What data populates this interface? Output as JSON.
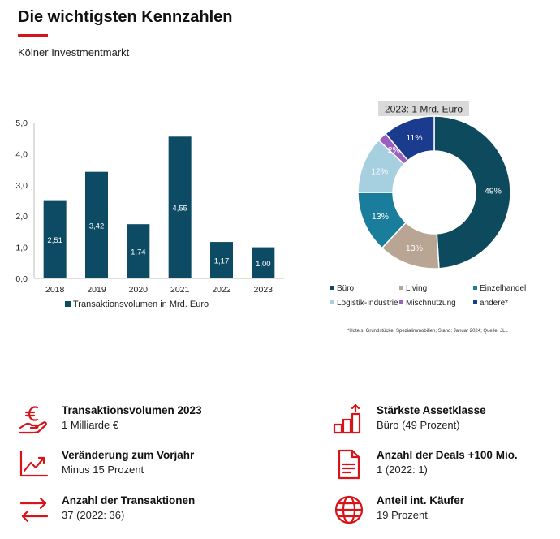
{
  "header": {
    "title": "Die wichtigsten Kennzahlen",
    "subtitle": "Kölner Investmentmarkt"
  },
  "colors": {
    "accent": "#d7141a",
    "bar": "#0d4a63"
  },
  "chart_data": [
    {
      "type": "bar",
      "categories": [
        "2018",
        "2019",
        "2020",
        "2021",
        "2022",
        "2023"
      ],
      "series": [
        {
          "name": "Transaktionsvolumen in Mrd. Euro",
          "values": [
            2.51,
            3.42,
            1.74,
            4.55,
            1.17,
            1.0
          ]
        }
      ],
      "value_labels": [
        "2,51",
        "3,42",
        "1,74",
        "4,55",
        "1,17",
        "1,00"
      ],
      "ylim": [
        0,
        5
      ],
      "yticks": [
        0,
        1,
        2,
        3,
        4,
        5
      ],
      "ytick_labels": [
        "0,0",
        "1,0",
        "2,0",
        "3,0",
        "4,0",
        "5,0"
      ],
      "grid": false,
      "legend_position": "bottom"
    },
    {
      "type": "pie",
      "title": "2023: 1 Mrd. Euro",
      "donut": true,
      "labels": [
        "Büro",
        "Living",
        "Einzelhandel",
        "Logistik-Industrie",
        "Mischnutzung",
        "andere*"
      ],
      "values": [
        49,
        13,
        13,
        12,
        2,
        11
      ],
      "value_labels": [
        "49%",
        "13%",
        "13%",
        "12%",
        "2%",
        "11%"
      ],
      "colors": [
        "#0d4a5e",
        "#b8a594",
        "#1a7d9c",
        "#a6d0df",
        "#9b5fc0",
        "#1b3b8f"
      ],
      "legend_position": "bottom",
      "footnote": "*Hotels, Grundstücke, Spezialimmobilien; Stand: Januar 2024; Quelle: JLL"
    }
  ],
  "kpis": {
    "volumen": {
      "label": "Transaktionsvolumen 2023",
      "value": "1 Milliarde €",
      "icon": "euro-hand-icon"
    },
    "veraenderung": {
      "label": "Veränderung zum Vorjahr",
      "value": "Minus 15 Prozent",
      "icon": "trend-chart-icon"
    },
    "transaktionen": {
      "label": "Anzahl der Transaktionen",
      "value": "37 (2022: 36)",
      "icon": "exchange-arrows-icon"
    },
    "assetklasse": {
      "label": "Stärkste Assetklasse",
      "value": "Büro (49 Prozent)",
      "icon": "growth-bars-icon"
    },
    "deals": {
      "label": "Anzahl der Deals +100 Mio.",
      "value": "1 (2022: 1)",
      "icon": "document-icon"
    },
    "kaeufer": {
      "label": "Anteil int. Käufer",
      "value": "19 Prozent",
      "icon": "globe-icon"
    }
  }
}
